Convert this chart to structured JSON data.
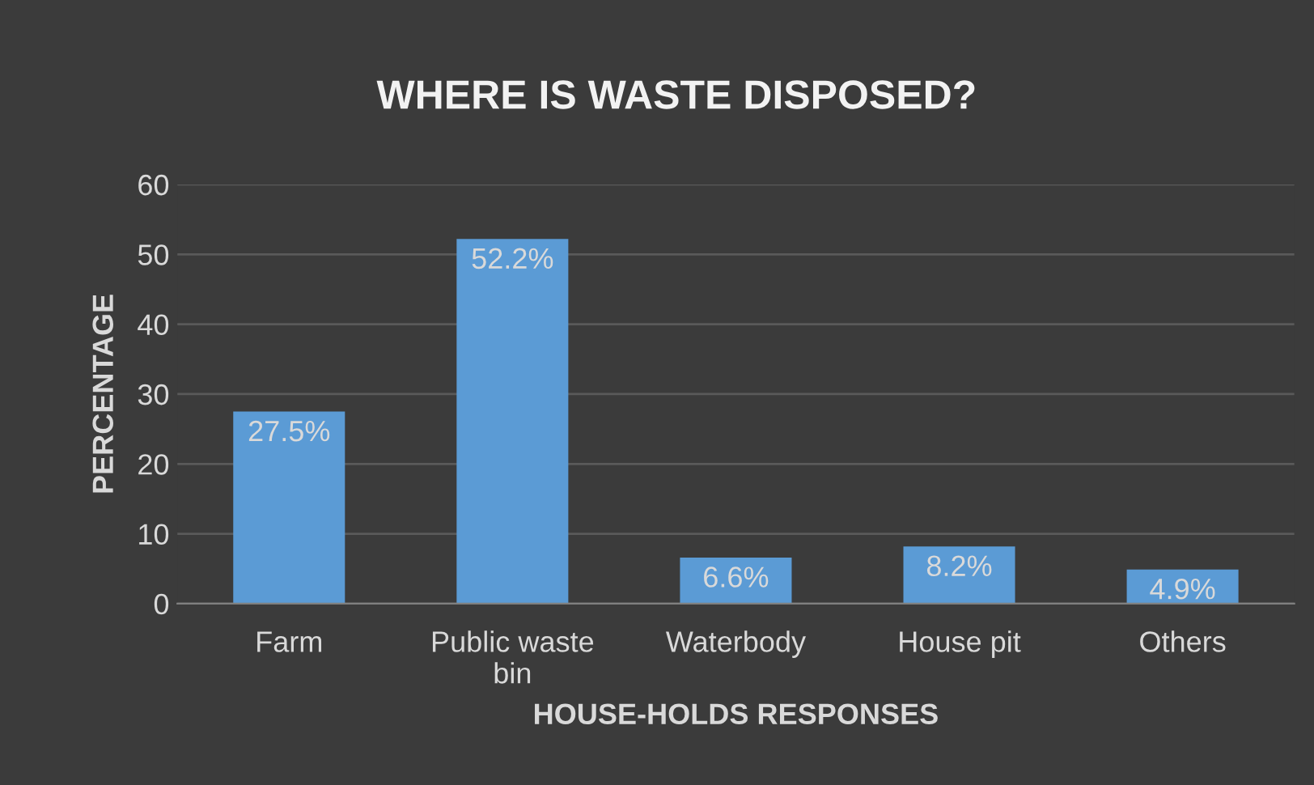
{
  "chart_data": {
    "type": "bar",
    "title": "WHERE IS WASTE DISPOSED?",
    "xlabel": "HOUSE-HOLDS RESPONSES",
    "ylabel": "PERCENTAGE",
    "categories": [
      "Farm",
      "Public waste bin",
      "Waterbody",
      "House pit",
      "Others"
    ],
    "values": [
      27.5,
      52.2,
      6.6,
      8.2,
      4.9
    ],
    "value_labels": [
      "27.5%",
      "52.2%",
      "6.6%",
      "8.2%",
      "4.9%"
    ],
    "color": "#5b9bd5",
    "ylim": [
      0,
      60
    ],
    "yticks": [
      0,
      10,
      20,
      30,
      40,
      50,
      60
    ],
    "grid": "y"
  }
}
